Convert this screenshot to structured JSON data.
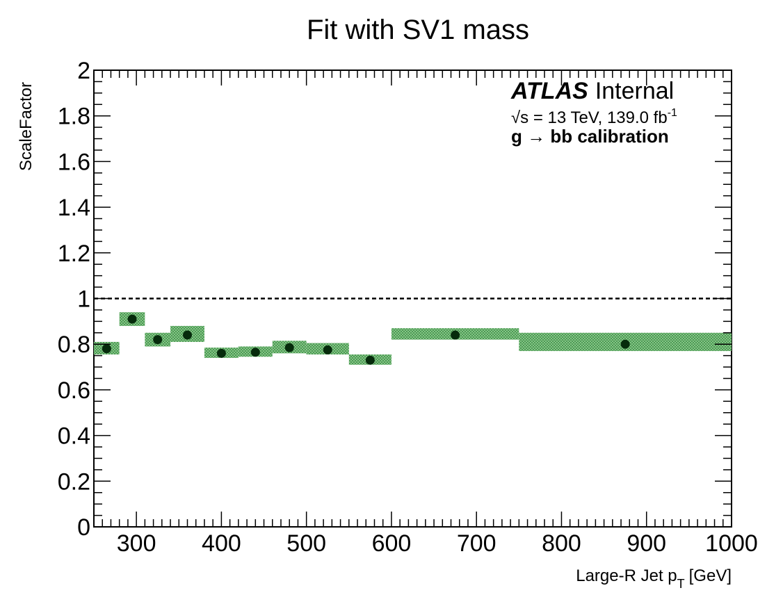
{
  "page_title": "Fit with SV1 mass",
  "chart_data": {
    "type": "scatter",
    "xlabel": "Large-R Jet p",
    "xlabel_subscript": "T",
    "xlabel_unit": "[GeV]",
    "ylabel": "ScaleFactor",
    "xlim": [
      250,
      1000
    ],
    "ylim": [
      0,
      2
    ],
    "x_ticks": [
      300,
      400,
      500,
      600,
      700,
      800,
      900,
      1000
    ],
    "y_ticks": [
      0,
      0.2,
      0.4,
      0.6,
      0.8,
      1,
      1.2,
      1.4,
      1.6,
      1.8,
      2
    ],
    "y_tick_labels": [
      "0",
      "0.2",
      "0.4",
      "0.6",
      "0.8",
      "1",
      "1.2",
      "1.4",
      "1.6",
      "1.8",
      "2"
    ],
    "reference_line_y": 1,
    "annotations": {
      "experiment": "ATLAS",
      "status": "Internal",
      "energy": "√s = 13 TeV, 139.0 fb",
      "energy_sup": "-1",
      "process": "g → bb calibration"
    },
    "points": [
      {
        "x_low": 250,
        "x_high": 280,
        "x": 265,
        "y": 0.78,
        "y_low": 0.755,
        "y_high": 0.81
      },
      {
        "x_low": 280,
        "x_high": 310,
        "x": 295,
        "y": 0.91,
        "y_low": 0.88,
        "y_high": 0.94
      },
      {
        "x_low": 310,
        "x_high": 340,
        "x": 325,
        "y": 0.82,
        "y_low": 0.79,
        "y_high": 0.85
      },
      {
        "x_low": 340,
        "x_high": 380,
        "x": 360,
        "y": 0.84,
        "y_low": 0.81,
        "y_high": 0.88
      },
      {
        "x_low": 380,
        "x_high": 420,
        "x": 400,
        "y": 0.76,
        "y_low": 0.74,
        "y_high": 0.785
      },
      {
        "x_low": 420,
        "x_high": 460,
        "x": 440,
        "y": 0.765,
        "y_low": 0.745,
        "y_high": 0.79
      },
      {
        "x_low": 460,
        "x_high": 500,
        "x": 480,
        "y": 0.785,
        "y_low": 0.76,
        "y_high": 0.815
      },
      {
        "x_low": 500,
        "x_high": 550,
        "x": 525,
        "y": 0.775,
        "y_low": 0.755,
        "y_high": 0.805
      },
      {
        "x_low": 550,
        "x_high": 600,
        "x": 575,
        "y": 0.73,
        "y_low": 0.71,
        "y_high": 0.755
      },
      {
        "x_low": 600,
        "x_high": 750,
        "x": 675,
        "y": 0.84,
        "y_low": 0.82,
        "y_high": 0.87
      },
      {
        "x_low": 750,
        "x_high": 1000,
        "x": 875,
        "y": 0.8,
        "y_low": 0.77,
        "y_high": 0.85
      }
    ],
    "colors": {
      "band_fill": "#7fbf7f",
      "band_hatch": "#3f8f4a",
      "marker": "#062b0c",
      "axis": "#000000"
    }
  }
}
